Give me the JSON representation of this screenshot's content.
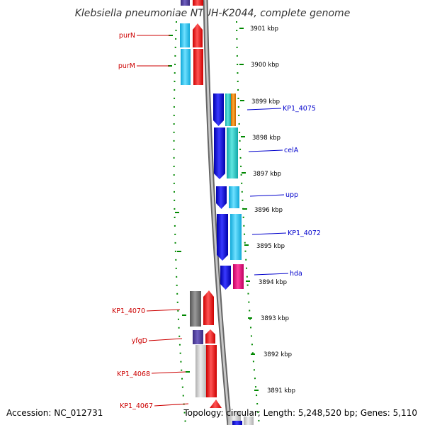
{
  "title": "Klebsiella pneumoniae NTUH-K2044, complete genome",
  "footer": {
    "accession": "Accession: NC_012731",
    "topology": "Topology: circular; Length: 5,248,520 bp; Genes: 5,110"
  },
  "scale_labels": [
    "3901 kbp",
    "3900 kbp",
    "3899 kbp",
    "3898 kbp",
    "3897 kbp",
    "3896 kbp",
    "3895 kbp",
    "3894 kbp",
    "3893 kbp",
    "3892 kbp",
    "3891 kbp"
  ],
  "gene_labels_left": [
    "purN",
    "purM",
    "KP1_4070",
    "yfgD",
    "KP1_4068",
    "KP1_4067"
  ],
  "gene_labels_right": [
    "KP1_4075",
    "celA",
    "upp",
    "KP1_4072",
    "hda"
  ],
  "colors": {
    "left_label": "#cc0000",
    "right_label": "#0000cc",
    "ring_dots": "#008800",
    "backbone": "#888888"
  }
}
